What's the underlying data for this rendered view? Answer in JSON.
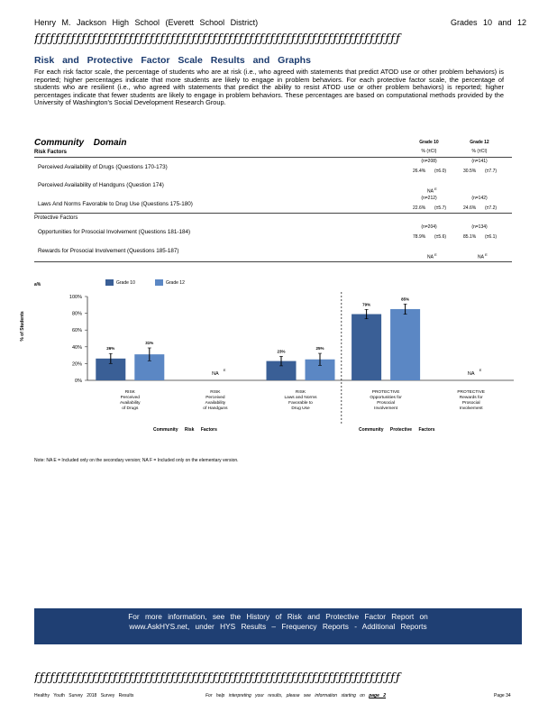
{
  "header": {
    "school": "Henry M. Jackson High School (Everett School District)",
    "grades": "Grades 10 and 12"
  },
  "rule_glyphs": "ƒƒƒƒƒƒƒƒƒƒƒƒƒƒƒƒƒƒƒƒƒƒƒƒƒƒƒƒƒƒƒƒƒƒƒƒƒƒƒƒƒƒƒƒƒƒƒƒƒƒƒƒƒƒƒƒƒƒƒƒƒƒƒƒƒƒƒƒƒƒ",
  "section": {
    "title": "Risk and Protective Factor Scale Results and Graphs",
    "intro": "For each risk factor scale, the percentage of students who are at risk (i.e., who agreed with statements that predict ATOD use or other problem behaviors) is reported; higher percentages indicate that more students are likely to engage in problem behaviors. For each protective factor scale, the percentage of students who are resilient (i.e., who agreed with statements that predict the ability to resist ATOD use or other problem behaviors) is reported; higher percentages indicate that fewer students are likely to engage in problem behaviors. These percentages are based on computational methods provided by the University of Washington's Social Development Research Group."
  },
  "domain": {
    "title": "Community Domain",
    "risk_label": "Risk Factors",
    "protective_label": "Protective Factors",
    "col_heads": [
      {
        "grade": "Grade 10",
        "sub": "% (±CI)"
      },
      {
        "grade": "Grade 12",
        "sub": "% (±CI)"
      }
    ],
    "rows": [
      {
        "label": "Perceived Availability of Drugs (Questions 170-173)",
        "n10": "(n=208)",
        "v10": "26.4%",
        "ci10": "(±6.0)",
        "n12": "(n=141)",
        "v12": "30.5%",
        "ci12": "(±7.7)"
      },
      {
        "label": "Perceived Availability of Handguns (Question 174)",
        "na10": "NA",
        "na_sup": "E"
      },
      {
        "label": "Laws And Norms Favorable to Drug Use (Questions 175-180)",
        "n10": "(n=212)",
        "v10": "22.6%",
        "ci10": "(±5.7)",
        "n12": "(n=142)",
        "v12": "24.6%",
        "ci12": "(±7.2)"
      },
      {
        "label": "Opportunities for Prosocial Involvement (Questions 181-184)",
        "n10": "(n=204)",
        "v10": "78.9%",
        "ci10": "(±5.6)",
        "n12": "(n=134)",
        "v12": "85.1%",
        "ci12": "(±6.1)"
      },
      {
        "label": "Rewards for Prosocial Involvement (Questions 185-187)",
        "na10": "NA",
        "na12": "NA",
        "na_sup": "E"
      }
    ]
  },
  "chart_data": {
    "type": "bar",
    "ylabel": "% of Students",
    "ylim": [
      0,
      100
    ],
    "yticks": [
      "0%",
      "20%",
      "40%",
      "60%",
      "80%",
      "100%"
    ],
    "legend_marker": "a%",
    "categories": [
      "RISK Perceived Availability of Drugs",
      "RISK Perceived Availability of Handguns",
      "RISK Laws and Norms Favorable to Drug Use",
      "PROTECTIVE Opportunities for Prosocial Involvement",
      "PROTECTIVE Rewards for Prosocial Involvement"
    ],
    "category_lines": [
      [
        "RISK",
        "Perceived",
        "Availability",
        "of Drugs"
      ],
      [
        "RISK",
        "Perceived",
        "Availability",
        "of Handguns"
      ],
      [
        "RISK",
        "Laws and Norms",
        "Favorable to",
        "Drug Use"
      ],
      [
        "PROTECTIVE",
        "Opportunities for",
        "Prosocial",
        "Involvement"
      ],
      [
        "PROTECTIVE",
        "Rewards for",
        "Prosocial",
        "Involvement"
      ]
    ],
    "series": [
      {
        "name": "Grade 10",
        "color": "#3a5f96",
        "values": [
          26,
          null,
          23,
          79,
          null
        ],
        "ci": [
          6.0,
          null,
          5.7,
          5.6,
          null
        ],
        "labels": [
          "26%",
          "",
          "23%",
          "79%",
          ""
        ]
      },
      {
        "name": "Grade 12",
        "color": "#5b87c4",
        "values": [
          31,
          null,
          25,
          85,
          null
        ],
        "ci": [
          7.7,
          null,
          7.2,
          6.1,
          null
        ],
        "labels": [
          "31%",
          "",
          "25%",
          "85%",
          ""
        ]
      }
    ],
    "na_label": "NA",
    "na_sup": "E",
    "group_labels": [
      "Community Risk Factors",
      "Community Protective Factors"
    ]
  },
  "note": "Note: NA E = Included only on the secondary version; NA F = Included only on the elementary version.",
  "banner": {
    "line1": "For more information, see the History of Risk and Protective Factor Report on",
    "line2": "www.AskHYS.net, under HYS Results – Frequency Reports - Additional Reports"
  },
  "footer": {
    "left": "Healthy Youth Survey 2018 Survey Results",
    "mid_pre": "For help interpreting your results, please see information starting on",
    "mid_link": "page 2",
    "right": "Page 34"
  }
}
